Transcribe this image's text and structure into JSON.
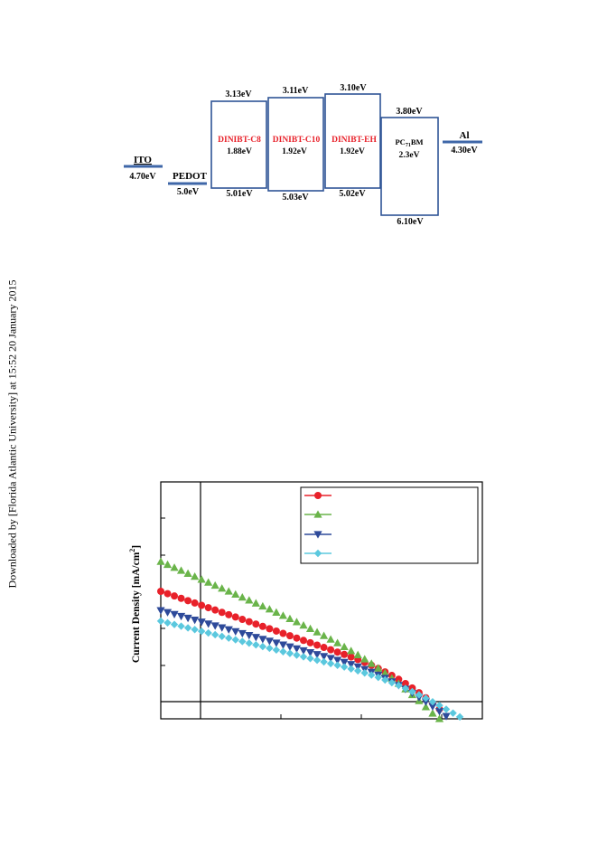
{
  "watermark": "Downloaded by [Florida Atlantic University] at 15:52 20 January 2015",
  "energy_diagram": {
    "colors": {
      "box": "#2f5496",
      "red_label": "#e8212a",
      "line": "#3f67a8"
    },
    "ito": {
      "label": "ITO",
      "value": "4.70eV"
    },
    "pedot": {
      "label": "PEDOT",
      "value": "5.0eV"
    },
    "al": {
      "label": "Al",
      "value": "4.30eV"
    },
    "boxes": [
      {
        "name": "DINIBT-C8",
        "gap": "1.88eV",
        "lumo": "3.13eV",
        "homo": "5.01eV"
      },
      {
        "name": "DINIBT-C10",
        "gap": "1.92eV",
        "lumo": "3.11eV",
        "homo": "5.03eV"
      },
      {
        "name": "DINIBT-EH",
        "gap": "1.92eV",
        "lumo": "3.10eV",
        "homo": "5.02eV"
      }
    ],
    "pcbm": {
      "name": "PC71BM",
      "name_main": "PC",
      "name_sub": "71",
      "name_tail": "BM",
      "gap": "2.3eV",
      "lumo": "3.80eV",
      "homo": "6.10eV"
    }
  },
  "chart_data": {
    "type": "scatter",
    "title": "",
    "xlabel": "",
    "ylabel": "Current Density [mA/cm²]",
    "ylabel_main": "Current Density [mA/cm",
    "ylabel_sup": "2",
    "ylabel_tail": "]",
    "legend_position": "top-right",
    "grid": false,
    "xlim": [
      0,
      1
    ],
    "ylim": [
      0,
      1
    ],
    "series": [
      {
        "color": "#e8212a",
        "marker": "circle",
        "x": [
          0.0,
          0.022,
          0.044,
          0.066,
          0.088,
          0.11,
          0.132,
          0.154,
          0.176,
          0.198,
          0.22,
          0.242,
          0.264,
          0.286,
          0.308,
          0.33,
          0.352,
          0.374,
          0.396,
          0.418,
          0.44,
          0.462,
          0.484,
          0.506,
          0.528,
          0.55,
          0.572,
          0.594,
          0.616,
          0.638,
          0.66,
          0.682,
          0.704,
          0.726,
          0.748,
          0.77,
          0.792,
          0.814,
          0.836,
          0.858,
          0.88,
          0.902
        ],
        "y": [
          0.6,
          0.589,
          0.578,
          0.567,
          0.556,
          0.545,
          0.534,
          0.523,
          0.512,
          0.501,
          0.49,
          0.479,
          0.468,
          0.457,
          0.446,
          0.435,
          0.424,
          0.413,
          0.402,
          0.391,
          0.38,
          0.369,
          0.358,
          0.347,
          0.336,
          0.325,
          0.314,
          0.303,
          0.291,
          0.279,
          0.266,
          0.252,
          0.237,
          0.221,
          0.204,
          0.186,
          0.166,
          0.145,
          0.123,
          0.099,
          0.073,
          0.046
        ]
      },
      {
        "color": "#6ab44a",
        "marker": "triangle-up",
        "x": [
          0.0,
          0.022,
          0.044,
          0.066,
          0.088,
          0.11,
          0.132,
          0.154,
          0.176,
          0.198,
          0.22,
          0.242,
          0.264,
          0.286,
          0.308,
          0.33,
          0.352,
          0.374,
          0.396,
          0.418,
          0.44,
          0.462,
          0.484,
          0.506,
          0.528,
          0.55,
          0.572,
          0.594,
          0.616,
          0.638,
          0.66,
          0.682,
          0.704,
          0.726,
          0.748,
          0.77,
          0.792,
          0.814,
          0.836,
          0.858,
          0.88,
          0.902
        ],
        "y": [
          0.74,
          0.726,
          0.712,
          0.698,
          0.684,
          0.67,
          0.656,
          0.642,
          0.628,
          0.614,
          0.6,
          0.586,
          0.572,
          0.558,
          0.544,
          0.53,
          0.516,
          0.501,
          0.486,
          0.471,
          0.456,
          0.44,
          0.424,
          0.408,
          0.391,
          0.374,
          0.357,
          0.339,
          0.32,
          0.301,
          0.281,
          0.26,
          0.238,
          0.215,
          0.191,
          0.166,
          0.14,
          0.113,
          0.085,
          0.056,
          0.026,
          0.0
        ]
      },
      {
        "color": "#2e4a9a",
        "marker": "triangle-down",
        "x": [
          0.0,
          0.022,
          0.044,
          0.066,
          0.088,
          0.11,
          0.132,
          0.154,
          0.176,
          0.198,
          0.22,
          0.242,
          0.264,
          0.286,
          0.308,
          0.33,
          0.352,
          0.374,
          0.396,
          0.418,
          0.44,
          0.462,
          0.484,
          0.506,
          0.528,
          0.55,
          0.572,
          0.594,
          0.616,
          0.638,
          0.66,
          0.682,
          0.704,
          0.726,
          0.748,
          0.77,
          0.792,
          0.814,
          0.836,
          0.858,
          0.88,
          0.902,
          0.924
        ],
        "y": [
          0.51,
          0.501,
          0.492,
          0.483,
          0.474,
          0.465,
          0.456,
          0.447,
          0.438,
          0.429,
          0.42,
          0.411,
          0.402,
          0.393,
          0.384,
          0.375,
          0.366,
          0.357,
          0.348,
          0.339,
          0.33,
          0.321,
          0.312,
          0.303,
          0.294,
          0.285,
          0.276,
          0.266,
          0.256,
          0.245,
          0.233,
          0.22,
          0.206,
          0.191,
          0.175,
          0.158,
          0.14,
          0.121,
          0.101,
          0.08,
          0.058,
          0.035,
          0.012
        ]
      },
      {
        "color": "#5bc8de",
        "marker": "diamond",
        "x": [
          0.0,
          0.022,
          0.044,
          0.066,
          0.088,
          0.11,
          0.132,
          0.154,
          0.176,
          0.198,
          0.22,
          0.242,
          0.264,
          0.286,
          0.308,
          0.33,
          0.352,
          0.374,
          0.396,
          0.418,
          0.44,
          0.462,
          0.484,
          0.506,
          0.528,
          0.55,
          0.572,
          0.594,
          0.616,
          0.638,
          0.66,
          0.682,
          0.704,
          0.726,
          0.748,
          0.77,
          0.792,
          0.814,
          0.836,
          0.858,
          0.88,
          0.902,
          0.924,
          0.946,
          0.968
        ],
        "y": [
          0.46,
          0.452,
          0.444,
          0.436,
          0.428,
          0.42,
          0.412,
          0.404,
          0.396,
          0.388,
          0.38,
          0.372,
          0.364,
          0.356,
          0.348,
          0.34,
          0.332,
          0.324,
          0.316,
          0.308,
          0.3,
          0.292,
          0.284,
          0.276,
          0.268,
          0.26,
          0.252,
          0.244,
          0.235,
          0.226,
          0.216,
          0.206,
          0.195,
          0.183,
          0.17,
          0.157,
          0.143,
          0.128,
          0.113,
          0.097,
          0.08,
          0.063,
          0.045,
          0.027,
          0.009
        ]
      }
    ]
  }
}
